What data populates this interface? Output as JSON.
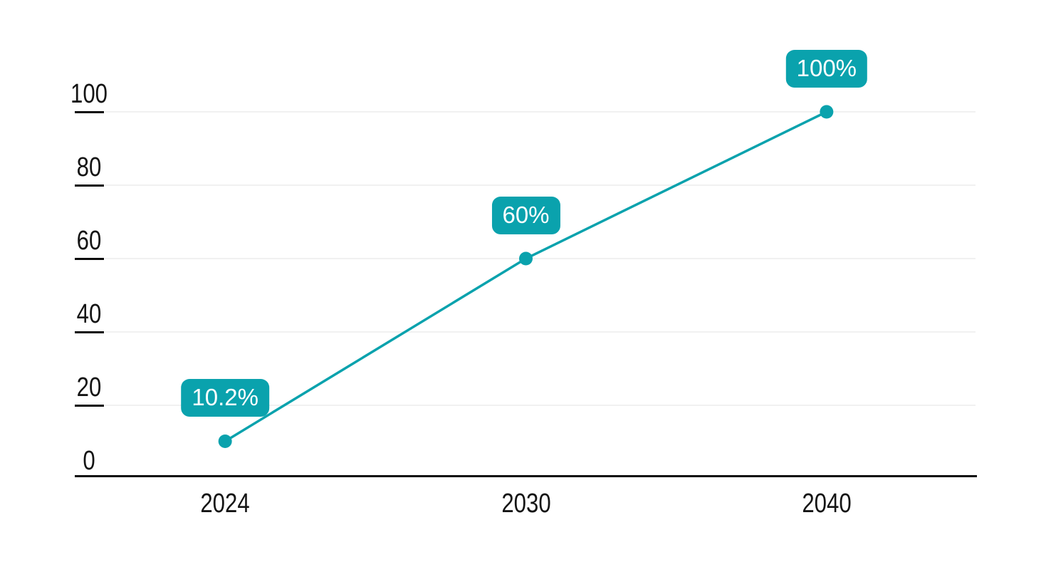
{
  "chart_data": {
    "type": "line",
    "categories": [
      "2024",
      "2030",
      "2040"
    ],
    "values": [
      10.2,
      60,
      100
    ],
    "point_labels": [
      "10.2%",
      "60%",
      "100%"
    ],
    "yticks": [
      0,
      20,
      40,
      60,
      80,
      100
    ],
    "ylim": [
      0,
      100
    ],
    "grid": "horizontal",
    "legend": "none",
    "colors": {
      "line": "#0aa2ad",
      "marker": "#0aa2ad",
      "label_bg": "#0aa2ad",
      "label_text": "#ffffff",
      "gridline": "#f1f1f1",
      "axis": "#0a0a0a",
      "tick_label": "#141414"
    }
  }
}
